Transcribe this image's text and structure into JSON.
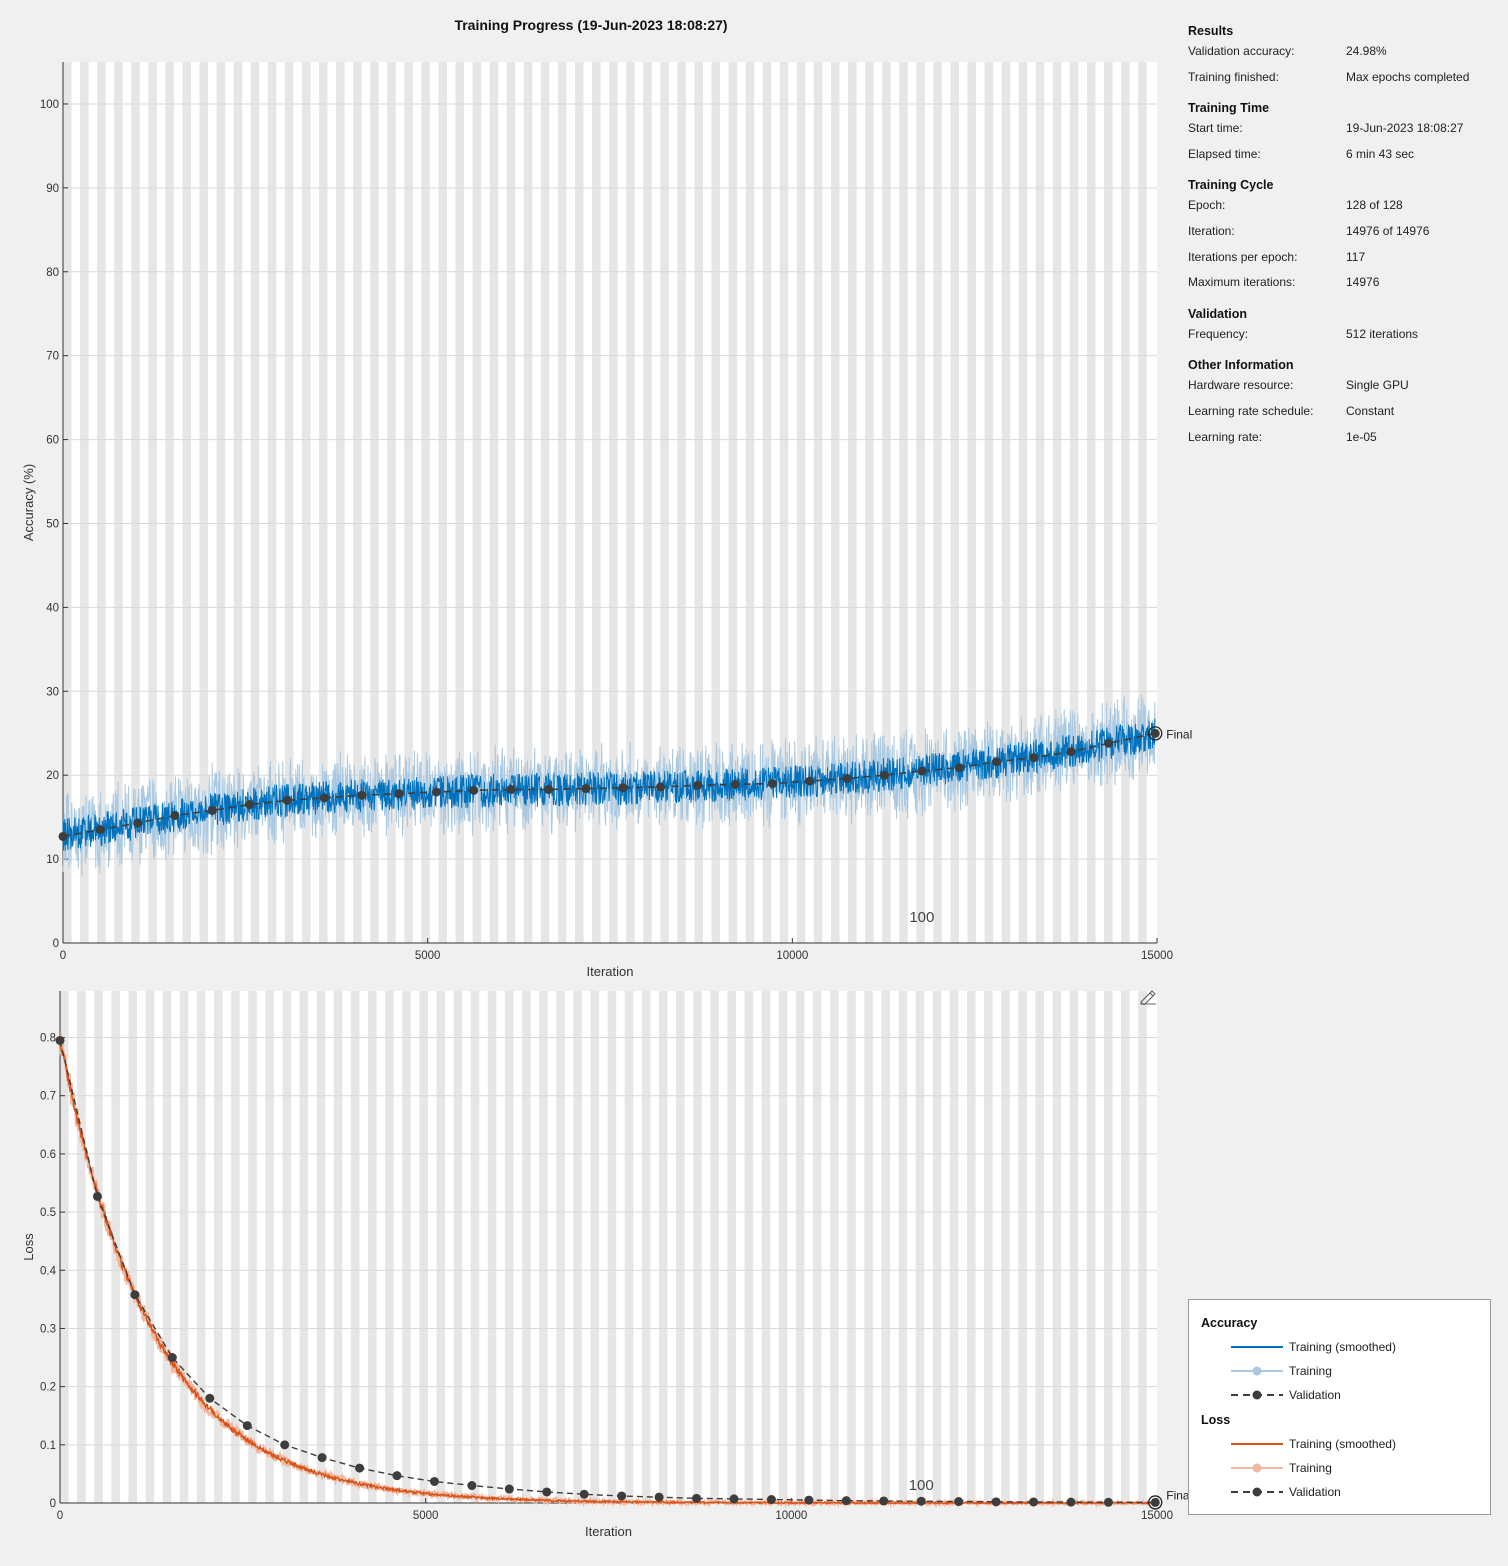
{
  "title": "Training Progress (19-Jun-2023 18:08:27)",
  "info": [
    {
      "heading": "Results",
      "rows": [
        {
          "k": "Validation accuracy:",
          "v": "24.98%"
        },
        {
          "k": "Training finished:",
          "v": "Max epochs completed"
        }
      ]
    },
    {
      "heading": "Training Time",
      "rows": [
        {
          "k": "Start time:",
          "v": "19-Jun-2023 18:08:27"
        },
        {
          "k": "Elapsed time:",
          "v": "6 min 43 sec"
        }
      ]
    },
    {
      "heading": "Training Cycle",
      "rows": [
        {
          "k": "Epoch:",
          "v": "128 of 128"
        },
        {
          "k": "Iteration:",
          "v": "14976 of 14976"
        },
        {
          "k": "Iterations per epoch:",
          "v": "117"
        },
        {
          "k": "Maximum iterations:",
          "v": "14976"
        }
      ]
    },
    {
      "heading": "Validation",
      "rows": [
        {
          "k": "Frequency:",
          "v": "512 iterations"
        }
      ]
    },
    {
      "heading": "Other Information",
      "rows": [
        {
          "k": "Hardware resource:",
          "v": "Single GPU"
        },
        {
          "k": "Learning rate schedule:",
          "v": "Constant"
        },
        {
          "k": "Learning rate:",
          "v": "1e-05"
        }
      ]
    }
  ],
  "legend": {
    "accuracy_title": "Accuracy",
    "loss_title": "Loss",
    "smoothed": "Training (smoothed)",
    "training": "Training",
    "validation": "Validation"
  },
  "colors": {
    "acc_smoothed": "#0072bd",
    "acc_raw": "#a9c9e2",
    "loss_smoothed": "#d95319",
    "loss_raw": "#efb8a0",
    "validation": "#3d3d3d"
  },
  "chart_data": [
    {
      "type": "line",
      "ylabel": "Accuracy (%)",
      "xlabel": "Iteration",
      "xlim": [
        0,
        15000
      ],
      "ylim": [
        0,
        105
      ],
      "xticks": [
        0,
        5000,
        10000,
        15000
      ],
      "yticks": [
        0,
        10,
        20,
        30,
        40,
        50,
        60,
        70,
        80,
        90,
        100
      ],
      "grid": true,
      "epoch_marker": "100",
      "final_label": "Final",
      "iterations_per_epoch": 117,
      "total_iterations": 14976,
      "validation": {
        "x": [
          0,
          512,
          1024,
          1536,
          2048,
          2560,
          3072,
          3584,
          4096,
          4608,
          5120,
          5632,
          6144,
          6656,
          7168,
          7680,
          8192,
          8704,
          9216,
          9728,
          10240,
          10752,
          11264,
          11776,
          12288,
          12800,
          13312,
          13824,
          14336,
          14976
        ],
        "y": [
          12.7,
          13.5,
          14.3,
          15.2,
          15.8,
          16.5,
          17.0,
          17.3,
          17.6,
          17.8,
          18.0,
          18.2,
          18.3,
          18.3,
          18.4,
          18.5,
          18.6,
          18.8,
          18.9,
          19.0,
          19.3,
          19.6,
          20.0,
          20.5,
          20.9,
          21.6,
          22.1,
          22.8,
          23.8,
          24.98
        ]
      },
      "smoothed_trend": {
        "x": [
          0,
          1000,
          2000,
          3000,
          4000,
          5000,
          6000,
          7000,
          8000,
          9000,
          10000,
          11000,
          12000,
          13000,
          14000,
          14976
        ],
        "y": [
          12.8,
          14.3,
          15.8,
          17.0,
          17.5,
          17.9,
          18.2,
          18.3,
          18.5,
          18.8,
          19.2,
          19.8,
          20.7,
          21.8,
          23.2,
          24.9
        ]
      }
    },
    {
      "type": "line",
      "ylabel": "Loss",
      "xlabel": "Iteration",
      "xlim": [
        0,
        15000
      ],
      "ylim": [
        0,
        0.88
      ],
      "xticks": [
        0,
        5000,
        10000,
        15000
      ],
      "yticks": [
        0,
        0.1,
        0.2,
        0.3,
        0.4,
        0.5,
        0.6,
        0.7,
        0.8
      ],
      "grid": true,
      "epoch_marker": "100",
      "final_label": "Final",
      "validation": {
        "x": [
          0,
          512,
          1024,
          1536,
          2048,
          2560,
          3072,
          3584,
          4096,
          4608,
          5120,
          5632,
          6144,
          6656,
          7168,
          7680,
          8192,
          8704,
          9216,
          9728,
          10240,
          10752,
          11264,
          11776,
          12288,
          12800,
          13312,
          13824,
          14336,
          14976
        ],
        "y": [
          0.795,
          0.527,
          0.358,
          0.25,
          0.18,
          0.133,
          0.1,
          0.078,
          0.06,
          0.047,
          0.037,
          0.03,
          0.024,
          0.019,
          0.015,
          0.012,
          0.01,
          0.008,
          0.007,
          0.006,
          0.005,
          0.004,
          0.0035,
          0.003,
          0.0025,
          0.002,
          0.0018,
          0.0015,
          0.0012,
          0.001
        ]
      }
    }
  ]
}
